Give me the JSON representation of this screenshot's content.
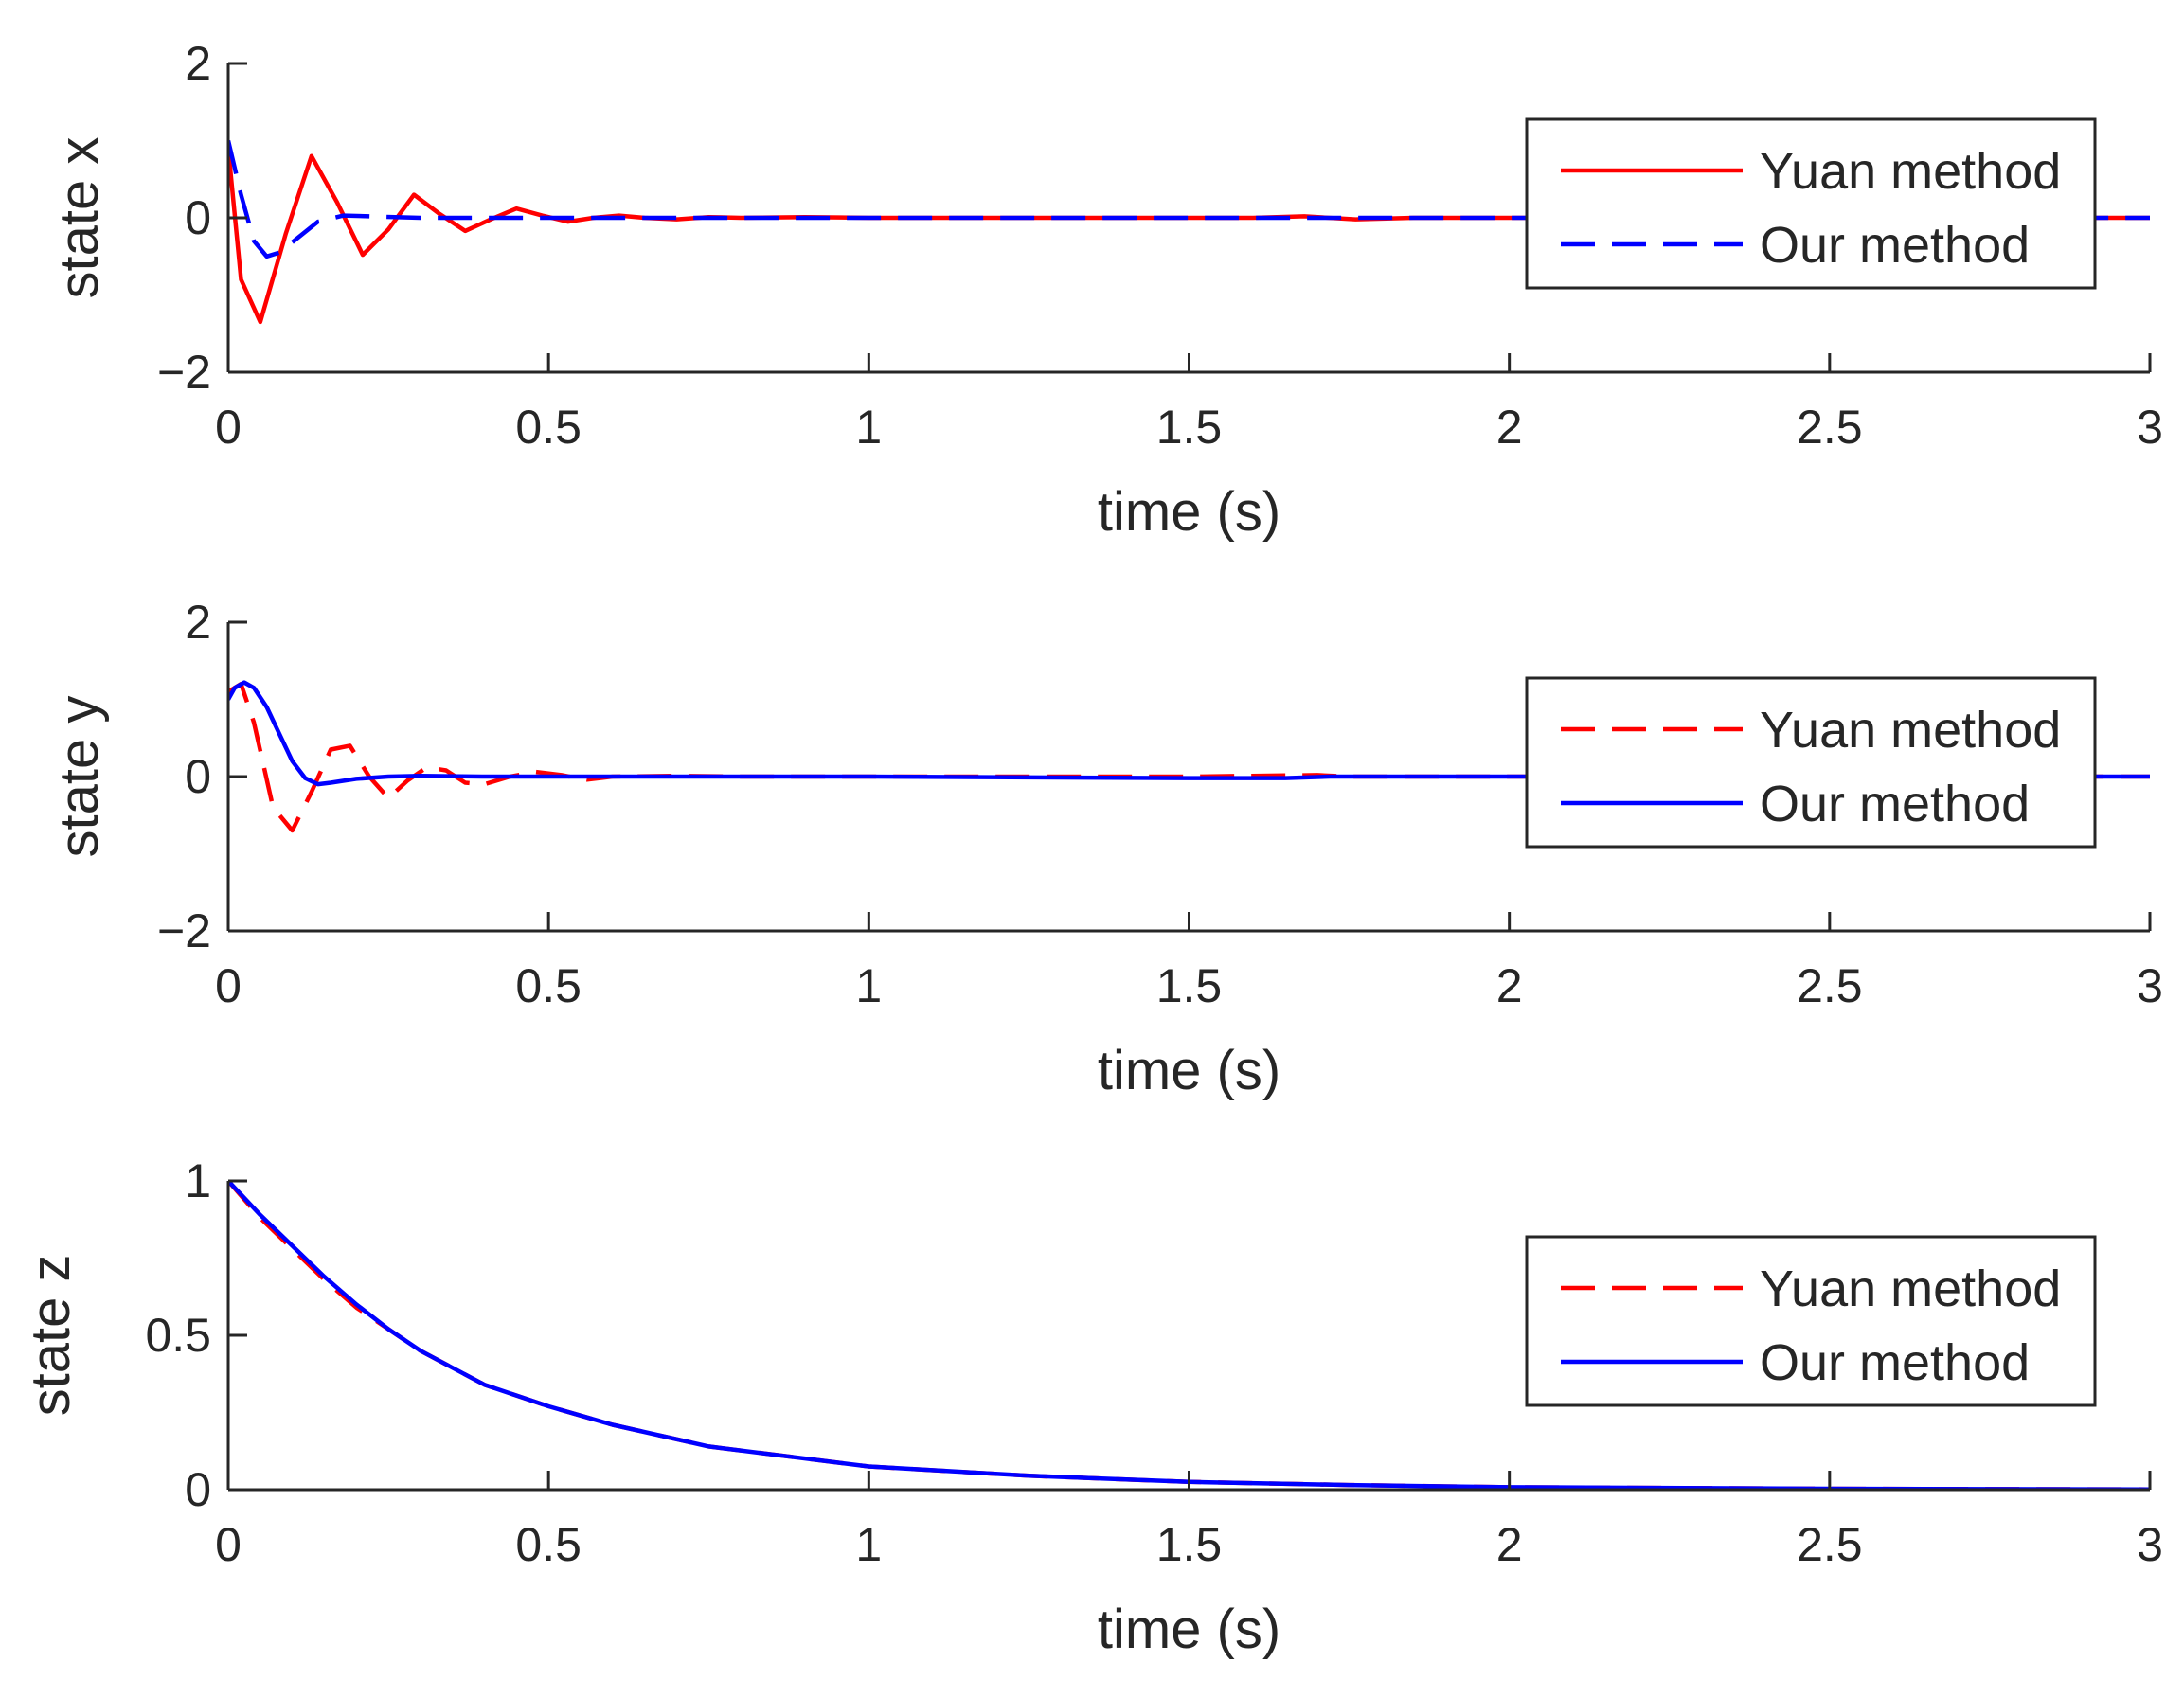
{
  "chart_data": [
    {
      "type": "line",
      "xlabel": "time (s)",
      "ylabel": "state x",
      "xlim": [
        0,
        3
      ],
      "ylim": [
        -2,
        2
      ],
      "xticks": [
        0,
        0.5,
        1,
        1.5,
        2,
        2.5,
        3
      ],
      "xtick_labels": [
        "0",
        "0.5",
        "1",
        "1.5",
        "2",
        "2.5",
        "3"
      ],
      "yticks": [
        -2,
        0,
        2
      ],
      "ytick_labels": [
        "−2",
        "0",
        "2"
      ],
      "legend_position": "right",
      "series": [
        {
          "name": "Yuan method",
          "color": "#ff0000",
          "style": "solid",
          "x": [
            0,
            0.02,
            0.05,
            0.09,
            0.13,
            0.17,
            0.21,
            0.25,
            0.29,
            0.33,
            0.37,
            0.41,
            0.45,
            0.49,
            0.53,
            0.57,
            0.61,
            0.65,
            0.7,
            0.75,
            0.8,
            0.9,
            1.0,
            1.2,
            1.4,
            1.6,
            1.68,
            1.76,
            1.85,
            2.0,
            2.5,
            3.0
          ],
          "y": [
            0.9,
            -0.8,
            -1.35,
            -0.2,
            0.8,
            0.2,
            -0.48,
            -0.15,
            0.3,
            0.05,
            -0.17,
            -0.02,
            0.12,
            0.03,
            -0.05,
            0.0,
            0.03,
            0.0,
            -0.02,
            0.01,
            0.0,
            0.01,
            0.0,
            0.0,
            0.0,
            0.0,
            0.02,
            -0.02,
            0.0,
            0.0,
            0.0,
            0.0
          ]
        },
        {
          "name": "Our method",
          "color": "#0000ff",
          "style": "dashed",
          "x": [
            0,
            0.02,
            0.04,
            0.06,
            0.08,
            0.11,
            0.14,
            0.18,
            0.22,
            0.3,
            0.4,
            0.6,
            1.0,
            2.0,
            3.0
          ],
          "y": [
            1.0,
            0.3,
            -0.3,
            -0.5,
            -0.45,
            -0.25,
            -0.05,
            0.03,
            0.02,
            0.0,
            0.0,
            0.0,
            0.0,
            0.0,
            0.0
          ]
        }
      ]
    },
    {
      "type": "line",
      "xlabel": "time (s)",
      "ylabel": "state y",
      "xlim": [
        0,
        3
      ],
      "ylim": [
        -2,
        2
      ],
      "xticks": [
        0,
        0.5,
        1,
        1.5,
        2,
        2.5,
        3
      ],
      "xtick_labels": [
        "0",
        "0.5",
        "1",
        "1.5",
        "2",
        "2.5",
        "3"
      ],
      "yticks": [
        -2,
        0,
        2
      ],
      "ytick_labels": [
        "−2",
        "0",
        "2"
      ],
      "legend_position": "right",
      "series": [
        {
          "name": "Yuan method",
          "color": "#ff0000",
          "style": "dashed",
          "x": [
            0,
            0.02,
            0.04,
            0.07,
            0.1,
            0.13,
            0.16,
            0.19,
            0.22,
            0.25,
            0.28,
            0.31,
            0.34,
            0.37,
            0.4,
            0.44,
            0.48,
            0.52,
            0.56,
            0.6,
            0.7,
            0.8,
            1.0,
            1.5,
            1.7,
            1.75,
            2.0,
            3.0
          ],
          "y": [
            1.1,
            1.2,
            0.7,
            -0.4,
            -0.7,
            -0.2,
            0.35,
            0.4,
            0.0,
            -0.28,
            -0.05,
            0.12,
            0.08,
            -0.08,
            -0.1,
            0.0,
            0.06,
            0.02,
            -0.04,
            0.0,
            0.01,
            0.0,
            0.0,
            0.0,
            0.02,
            0.0,
            0.0,
            0.0
          ]
        },
        {
          "name": "Our method",
          "color": "#0000ff",
          "style": "solid",
          "x": [
            0,
            0.01,
            0.025,
            0.04,
            0.06,
            0.08,
            0.1,
            0.12,
            0.14,
            0.16,
            0.2,
            0.25,
            0.3,
            0.4,
            0.6,
            1.0,
            1.5,
            1.65,
            1.72,
            2.0,
            3.0
          ],
          "y": [
            1.0,
            1.15,
            1.22,
            1.15,
            0.9,
            0.55,
            0.2,
            -0.02,
            -0.1,
            -0.08,
            -0.03,
            0.0,
            0.01,
            0.0,
            0.0,
            0.0,
            -0.02,
            -0.02,
            0.0,
            0.0,
            0.0
          ]
        }
      ]
    },
    {
      "type": "line",
      "xlabel": "time (s)",
      "ylabel": "state z",
      "xlim": [
        0,
        3
      ],
      "ylim": [
        0,
        1
      ],
      "xticks": [
        0,
        0.5,
        1,
        1.5,
        2,
        2.5,
        3
      ],
      "xtick_labels": [
        "0",
        "0.5",
        "1",
        "1.5",
        "2",
        "2.5",
        "3"
      ],
      "yticks": [
        0,
        0.5,
        1
      ],
      "ytick_labels": [
        "0",
        "0.5",
        "1"
      ],
      "legend_position": "right",
      "series": [
        {
          "name": "Yuan method",
          "color": "#ff0000",
          "style": "dashed",
          "x": [
            0,
            0.05,
            0.1,
            0.15,
            0.2,
            0.25,
            0.3,
            0.4,
            0.5,
            0.6,
            0.75,
            1.0,
            1.25,
            1.5,
            1.75,
            2.0,
            2.5,
            3.0
          ],
          "y": [
            1.0,
            0.88,
            0.78,
            0.68,
            0.59,
            0.52,
            0.45,
            0.34,
            0.27,
            0.21,
            0.14,
            0.075,
            0.045,
            0.025,
            0.015,
            0.008,
            0.003,
            0.001
          ]
        },
        {
          "name": "Our method",
          "color": "#0000ff",
          "style": "solid",
          "x": [
            0,
            0.05,
            0.1,
            0.15,
            0.2,
            0.25,
            0.3,
            0.4,
            0.5,
            0.6,
            0.75,
            1.0,
            1.25,
            1.5,
            1.75,
            2.0,
            2.5,
            3.0
          ],
          "y": [
            1.0,
            0.89,
            0.79,
            0.69,
            0.6,
            0.52,
            0.45,
            0.34,
            0.27,
            0.21,
            0.14,
            0.075,
            0.045,
            0.025,
            0.015,
            0.008,
            0.003,
            0.001
          ]
        }
      ]
    }
  ]
}
